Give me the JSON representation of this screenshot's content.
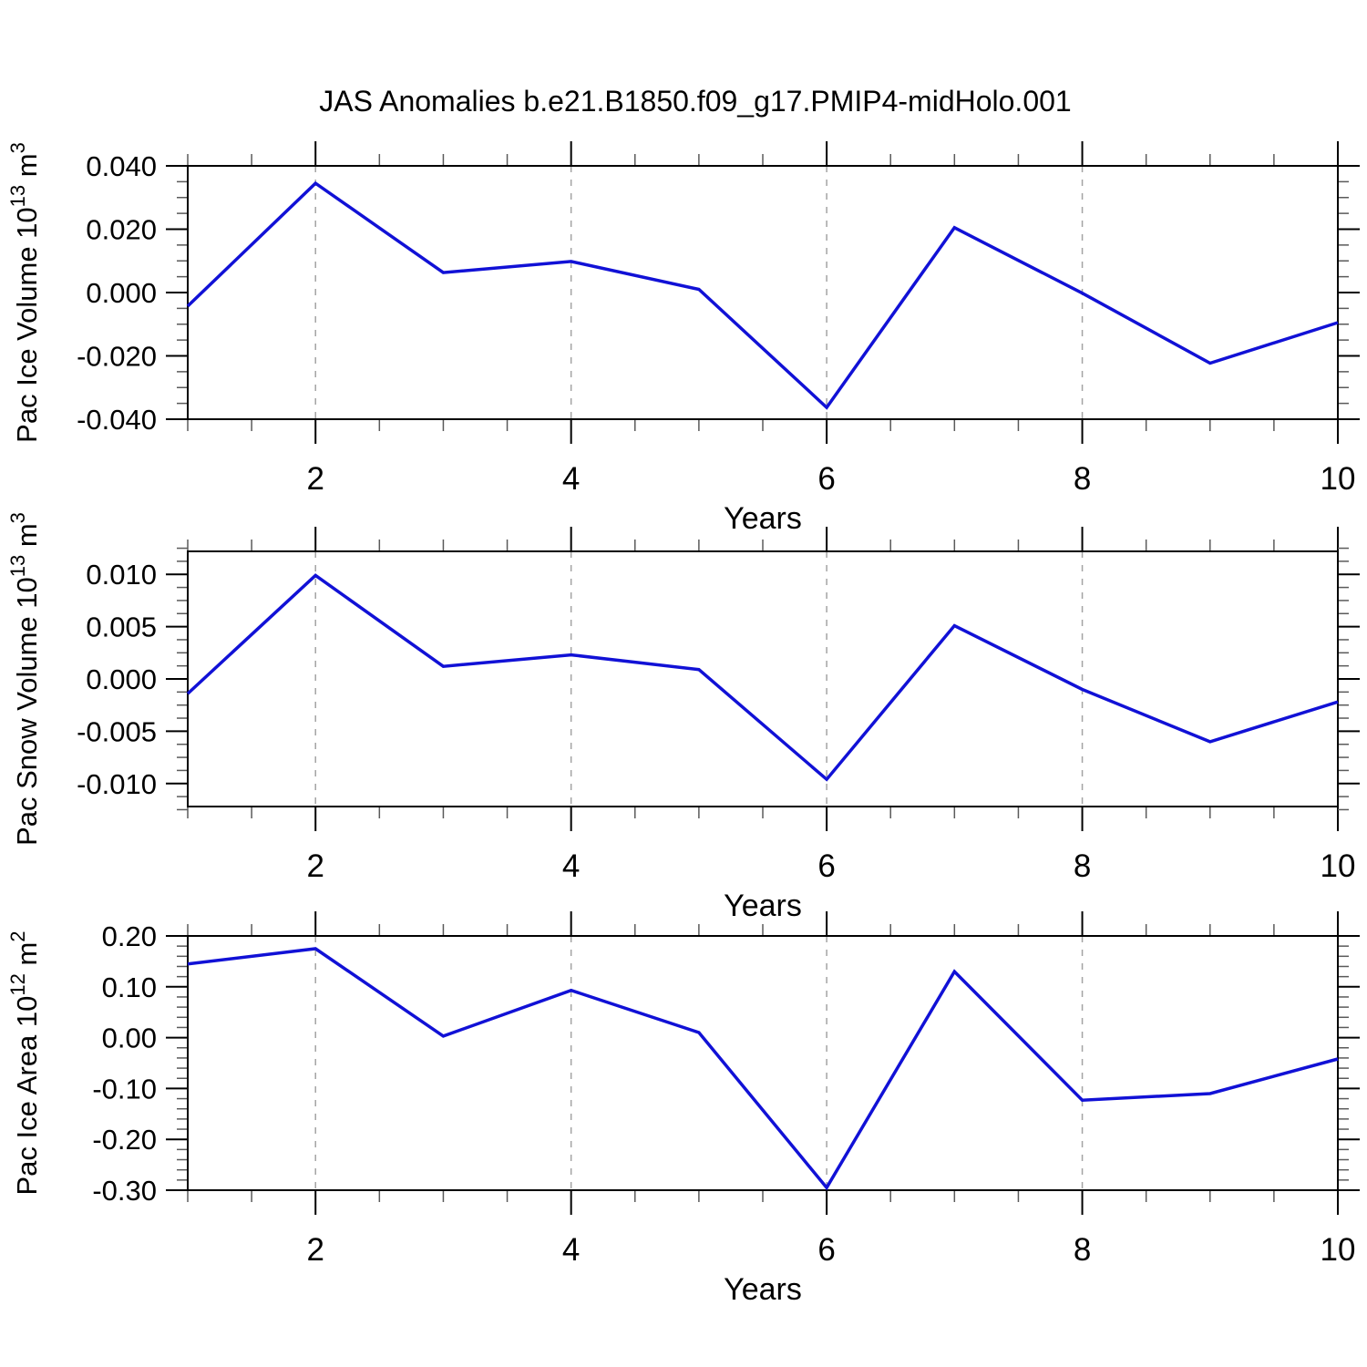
{
  "title": "JAS Anomalies b.e21.B1850.f09_g17.PMIP4-midHolo.001",
  "style": {
    "line_color": "#1111d6",
    "grid_color": "#a3a3a3",
    "frame_color": "#000000",
    "minor_tick_color": "#5a5a5a",
    "background": "#ffffff"
  },
  "chart_data": [
    {
      "type": "line",
      "ylabel": "Pac Ice Volume 10^13 m^3",
      "ylabel_rich": [
        {
          "t": "Pac Ice Volume 10"
        },
        {
          "t": "13",
          "sup": true
        },
        {
          "t": " m"
        },
        {
          "t": "3",
          "sup": true
        }
      ],
      "xlabel": "Years",
      "x": [
        1,
        2,
        3,
        4,
        5,
        6,
        7,
        8,
        9,
        10
      ],
      "values": [
        -0.0043,
        0.0345,
        0.0063,
        0.0098,
        0.001,
        -0.0363,
        0.0205,
        -0.0002,
        -0.0223,
        -0.0095
      ],
      "xlim": [
        1,
        10
      ],
      "ylim": [
        -0.04,
        0.04
      ],
      "yticks": [
        {
          "v": 0.04,
          "label": "0.040"
        },
        {
          "v": 0.02,
          "label": "0.020"
        },
        {
          "v": 0.0,
          "label": "0.000"
        },
        {
          "v": -0.02,
          "label": "-0.020"
        },
        {
          "v": -0.04,
          "label": "-0.040"
        }
      ],
      "y_minor_step": 0.005,
      "y_major_step": 0.02,
      "xticks": [
        {
          "v": 2,
          "label": "2"
        },
        {
          "v": 4,
          "label": "4"
        },
        {
          "v": 6,
          "label": "6"
        },
        {
          "v": 8,
          "label": "8"
        },
        {
          "v": 10,
          "label": "10"
        }
      ],
      "x_minor_step": 0.5,
      "gridlines_x": [
        2,
        4,
        6,
        8
      ],
      "grid": "dashed-vertical",
      "legend": "none"
    },
    {
      "type": "line",
      "ylabel": "Pac Snow Volume 10^13 m^3",
      "ylabel_rich": [
        {
          "t": "Pac Snow Volume 10"
        },
        {
          "t": "13",
          "sup": true
        },
        {
          "t": " m"
        },
        {
          "t": "3",
          "sup": true
        }
      ],
      "xlabel": "Years",
      "x": [
        1,
        2,
        3,
        4,
        5,
        6,
        7,
        8,
        9,
        10
      ],
      "values": [
        -0.0014,
        0.0099,
        0.0012,
        0.0023,
        0.0009,
        -0.0096,
        0.0051,
        -0.001,
        -0.006,
        -0.0022
      ],
      "xlim": [
        1,
        10
      ],
      "ylim": [
        -0.0122,
        0.0122
      ],
      "yticks": [
        {
          "v": 0.01,
          "label": "0.010"
        },
        {
          "v": 0.005,
          "label": "0.005"
        },
        {
          "v": 0.0,
          "label": "0.000"
        },
        {
          "v": -0.005,
          "label": "-0.005"
        },
        {
          "v": -0.01,
          "label": "-0.010"
        }
      ],
      "y_minor_step": 0.00125,
      "y_major_step": 0.005,
      "xticks": [
        {
          "v": 2,
          "label": "2"
        },
        {
          "v": 4,
          "label": "4"
        },
        {
          "v": 6,
          "label": "6"
        },
        {
          "v": 8,
          "label": "8"
        },
        {
          "v": 10,
          "label": "10"
        }
      ],
      "x_minor_step": 0.5,
      "gridlines_x": [
        2,
        4,
        6,
        8
      ],
      "grid": "dashed-vertical",
      "legend": "none"
    },
    {
      "type": "line",
      "ylabel": "Pac Ice Area 10^12 m^2",
      "ylabel_rich": [
        {
          "t": "Pac Ice Area 10"
        },
        {
          "t": "12",
          "sup": true
        },
        {
          "t": " m"
        },
        {
          "t": "2",
          "sup": true
        }
      ],
      "xlabel": "Years",
      "x": [
        1,
        2,
        3,
        4,
        5,
        6,
        7,
        8,
        9,
        10
      ],
      "values": [
        0.145,
        0.175,
        0.003,
        0.093,
        0.01,
        -0.295,
        0.13,
        -0.123,
        -0.11,
        -0.042
      ],
      "xlim": [
        1,
        10
      ],
      "ylim": [
        -0.3,
        0.2
      ],
      "yticks": [
        {
          "v": 0.2,
          "label": "0.20"
        },
        {
          "v": 0.1,
          "label": "0.10"
        },
        {
          "v": 0.0,
          "label": "0.00"
        },
        {
          "v": -0.1,
          "label": "-0.10"
        },
        {
          "v": -0.2,
          "label": "-0.20"
        },
        {
          "v": -0.3,
          "label": "-0.30"
        }
      ],
      "y_minor_step": 0.02,
      "y_major_step": 0.1,
      "xticks": [
        {
          "v": 2,
          "label": "2"
        },
        {
          "v": 4,
          "label": "4"
        },
        {
          "v": 6,
          "label": "6"
        },
        {
          "v": 8,
          "label": "8"
        },
        {
          "v": 10,
          "label": "10"
        }
      ],
      "x_minor_step": 0.5,
      "gridlines_x": [
        2,
        4,
        6,
        8
      ],
      "grid": "dashed-vertical",
      "legend": "none"
    }
  ]
}
